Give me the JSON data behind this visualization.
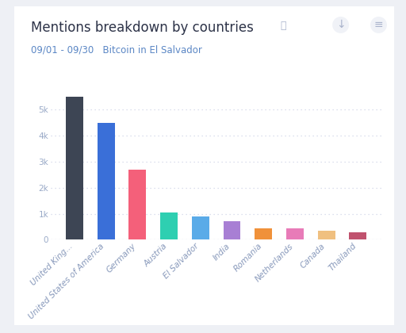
{
  "title": "Mentions breakdown by countries",
  "subtitle": "09/01 - 09/30   Bitcoin in El Salvador",
  "categories": [
    "United King...",
    "United States of America",
    "Germany",
    "Austria",
    "El Salvador",
    "India",
    "Romania",
    "Netherlands",
    "Canada",
    "Thailand"
  ],
  "values": [
    5500,
    4500,
    2700,
    1050,
    900,
    700,
    430,
    430,
    360,
    300
  ],
  "bar_colors": [
    "#3d4554",
    "#3a6fd8",
    "#f4607a",
    "#2ecfb1",
    "#5aabe8",
    "#a87fd4",
    "#f0913a",
    "#e87bb8",
    "#f0c080",
    "#c0526e"
  ],
  "background_color": "#eef0f5",
  "card_color": "#ffffff",
  "ytick_labels": [
    "0",
    "1k",
    "2k",
    "3k",
    "4k",
    "5k"
  ],
  "ytick_values": [
    0,
    1000,
    2000,
    3000,
    4000,
    5000
  ],
  "ylim": [
    0,
    6200
  ],
  "grid_color": "#d0d5e8",
  "title_fontsize": 12,
  "subtitle_fontsize": 8.5,
  "tick_fontsize": 7.5,
  "label_fontsize": 7.5
}
